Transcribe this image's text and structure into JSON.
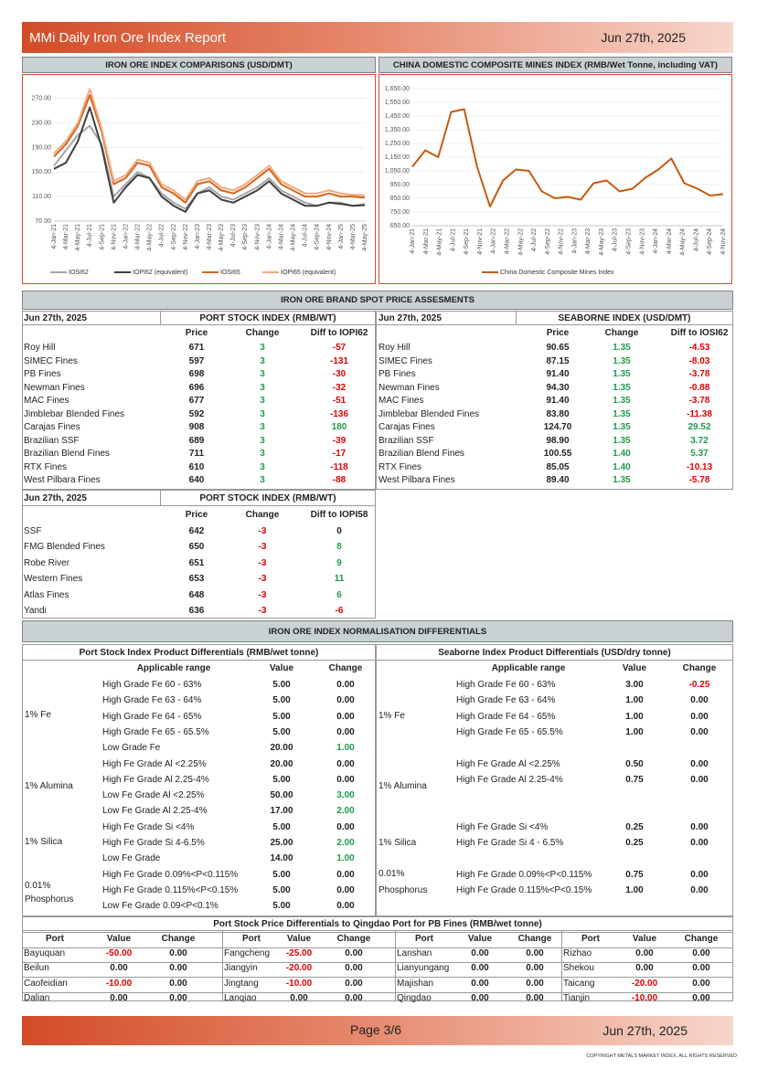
{
  "header": {
    "title": "MMi Daily Iron Ore Index Report",
    "date": "Jun 27th, 2025"
  },
  "footer": {
    "page": "Page 3/6",
    "date": "Jun 27th, 2025",
    "copyright": "COPYRIGHT METALS MARKET INDEX, ALL RIGHTS RESERVED"
  },
  "chart_left_title": "IRON ORE INDEX COMPARISONS (USD/DMT)",
  "chart_right_title": "CHINA DOMESTIC COMPOSITE MINES INDEX (RMB/Wet Tonne, including VAT)",
  "chart_data": [
    {
      "type": "line",
      "ylim": [
        70,
        290
      ],
      "y_ticks": [
        "270.00",
        "230.00",
        "190.00",
        "150.00",
        "110.00",
        "70.00"
      ],
      "x_ticks": [
        "4-Jan-21",
        "4-Mar-21",
        "4-May-21",
        "4-Jul-21",
        "4-Sep-21",
        "4-Nov-21",
        "4-Jan-22",
        "4-Mar-22",
        "4-May-22",
        "4-Jul-22",
        "4-Sep-22",
        "4-Nov-22",
        "4-Jan-23",
        "4-Mar-23",
        "4-May-23",
        "4-Jul-23",
        "4-Sep-23",
        "4-Nov-23",
        "4-Jan-24",
        "4-Mar-24",
        "4-May-24",
        "4-Jul-24",
        "4-Sep-24",
        "4-Nov-24",
        "4-Jan-25",
        "4-Mar-25",
        "4-May-25"
      ],
      "series": [
        {
          "name": "IOSI62",
          "color": "#a6a6a6",
          "values": [
            160,
            185,
            210,
            225,
            195,
            110,
            130,
            150,
            140,
            115,
            100,
            90,
            115,
            125,
            110,
            105,
            115,
            125,
            140,
            120,
            110,
            100,
            95,
            100,
            100,
            95,
            98
          ]
        },
        {
          "name": "IOPI62 (equivalent)",
          "color": "#404040",
          "values": [
            155,
            165,
            200,
            255,
            190,
            100,
            125,
            145,
            140,
            110,
            95,
            85,
            115,
            120,
            105,
            100,
            110,
            120,
            135,
            115,
            105,
            95,
            95,
            100,
            98,
            95,
            96
          ]
        },
        {
          "name": "IOSI65",
          "color": "#d4651e",
          "values": [
            175,
            195,
            225,
            275,
            215,
            130,
            140,
            165,
            160,
            125,
            115,
            100,
            130,
            135,
            120,
            115,
            125,
            140,
            155,
            130,
            120,
            110,
            110,
            115,
            110,
            110,
            108
          ]
        },
        {
          "name": "IOPI65 (equivalent)",
          "color": "#f2a97c",
          "values": [
            180,
            200,
            230,
            285,
            220,
            135,
            145,
            170,
            165,
            130,
            120,
            105,
            135,
            140,
            125,
            120,
            130,
            145,
            160,
            135,
            125,
            115,
            115,
            120,
            115,
            113,
            112
          ]
        }
      ]
    },
    {
      "type": "line",
      "ylim": [
        650,
        1650
      ],
      "y_ticks": [
        "1,650.00",
        "1,550.00",
        "1,450.00",
        "1,350.00",
        "1,250.00",
        "1,150.00",
        "1,050.00",
        "950.00",
        "850.00",
        "750.00",
        "650.00"
      ],
      "x_ticks": [
        "4-Jan-21",
        "4-Mar-21",
        "4-May-21",
        "4-Jul-21",
        "4-Sep-21",
        "4-Nov-21",
        "4-Jan-22",
        "4-Mar-22",
        "4-May-22",
        "4-Jul-22",
        "4-Sep-22",
        "4-Nov-22",
        "4-Jan-23",
        "4-Mar-23",
        "4-May-23",
        "4-Jul-23",
        "4-Sep-23",
        "4-Nov-23",
        "4-Jan-24",
        "4-Mar-24",
        "4-May-24",
        "4-Jul-24",
        "4-Sep-24",
        "4-Nov-24"
      ],
      "series": [
        {
          "name": "China Domestic Composite Mines Index",
          "color": "#c55a11",
          "values": [
            1080,
            1200,
            1150,
            1480,
            1500,
            1080,
            790,
            980,
            1060,
            1050,
            900,
            850,
            860,
            840,
            960,
            980,
            900,
            920,
            1000,
            1060,
            1140,
            960,
            920,
            870,
            880
          ]
        }
      ]
    }
  ],
  "spot_title": "IRON ORE BRAND SPOT PRICE ASSESMENTS",
  "port_stock": {
    "date": "Jun 27th, 2025",
    "title": "PORT STOCK INDEX (RMB/WT)",
    "cols": [
      "Price",
      "Change",
      "Diff to IOPI62"
    ],
    "rows": [
      [
        "Roy Hill",
        "671",
        "3",
        "-57"
      ],
      [
        "SIMEC Fines",
        "597",
        "3",
        "-131"
      ],
      [
        "PB Fines",
        "698",
        "3",
        "-30"
      ],
      [
        "Newman Fines",
        "696",
        "3",
        "-32"
      ],
      [
        "MAC Fines",
        "677",
        "3",
        "-51"
      ],
      [
        "Jimblebar Blended Fines",
        "592",
        "3",
        "-136"
      ],
      [
        "Carajas Fines",
        "908",
        "3",
        "180"
      ],
      [
        "Brazilian SSF",
        "689",
        "3",
        "-39"
      ],
      [
        "Brazilian Blend Fines",
        "711",
        "3",
        "-17"
      ],
      [
        "RTX Fines",
        "610",
        "3",
        "-118"
      ],
      [
        "West Pilbara Fines",
        "640",
        "3",
        "-88"
      ]
    ]
  },
  "seaborne": {
    "date": "Jun 27th, 2025",
    "title": "SEABORNE INDEX (USD/DMT)",
    "cols": [
      "Price",
      "Change",
      "Diff to IOSI62"
    ],
    "rows": [
      [
        "Roy Hill",
        "90.65",
        "1.35",
        "-4.53"
      ],
      [
        "SIMEC Fines",
        "87.15",
        "1.35",
        "-8.03"
      ],
      [
        "PB Fines",
        "91.40",
        "1.35",
        "-3.78"
      ],
      [
        "Newman Fines",
        "94.30",
        "1.35",
        "-0.88"
      ],
      [
        "MAC Fines",
        "91.40",
        "1.35",
        "-3.78"
      ],
      [
        "Jimblebar Blended Fines",
        "83.80",
        "1.35",
        "-11.38"
      ],
      [
        "Carajas Fines",
        "124.70",
        "1.35",
        "29.52"
      ],
      [
        "Brazilian SSF",
        "98.90",
        "1.35",
        "3.72"
      ],
      [
        "Brazilian Blend Fines",
        "100.55",
        "1.40",
        "5.37"
      ],
      [
        "RTX Fines",
        "85.05",
        "1.40",
        "-10.13"
      ],
      [
        "West Pilbara Fines",
        "89.40",
        "1.35",
        "-5.78"
      ]
    ]
  },
  "port_stock58": {
    "date": "Jun 27th, 2025",
    "title": "PORT STOCK INDEX (RMB/WT)",
    "cols": [
      "Price",
      "Change",
      "Diff to IOPI58"
    ],
    "rows": [
      [
        "SSF",
        "642",
        "-3",
        "0"
      ],
      [
        "FMG Blended Fines",
        "650",
        "-3",
        "8"
      ],
      [
        "Robe River",
        "651",
        "-3",
        "9"
      ],
      [
        "Western Fines",
        "653",
        "-3",
        "11"
      ],
      [
        "Atlas Fines",
        "648",
        "-3",
        "6"
      ],
      [
        "Yandi",
        "636",
        "-3",
        "-6"
      ]
    ]
  },
  "norm_title": "IRON ORE INDEX NORMALISATION DIFFERENTIALS",
  "norm_port": {
    "title": "Port Stock Index Product Differentials (RMB/wet tonne)",
    "cols": [
      "Applicable range",
      "Value",
      "Change"
    ],
    "groups": [
      "1% Fe",
      "1% Alumina",
      "1% Silica",
      "0.01% Phosphorus"
    ],
    "rows": [
      [
        "High Grade Fe 60 - 63%",
        "5.00",
        "0.00"
      ],
      [
        "High Grade Fe 63 - 64%",
        "5.00",
        "0.00"
      ],
      [
        "High Grade Fe 64 - 65%",
        "5.00",
        "0.00"
      ],
      [
        "High Grade Fe 65 - 65.5%",
        "5.00",
        "0.00"
      ],
      [
        "Low Grade Fe",
        "20.00",
        "1.00"
      ],
      [
        "High Fe Grade Al <2.25%",
        "20.00",
        "0.00"
      ],
      [
        "High Fe Grade Al 2.25-4%",
        "5.00",
        "0.00"
      ],
      [
        "Low Fe Grade Al <2.25%",
        "50.00",
        "3.00"
      ],
      [
        "Low Fe Grade Al 2.25-4%",
        "17.00",
        "2.00"
      ],
      [
        "High Fe Grade Si <4%",
        "5.00",
        "0.00"
      ],
      [
        "High Fe Grade Si 4-6.5%",
        "25.00",
        "2.00"
      ],
      [
        "Low Fe Grade",
        "14.00",
        "1.00"
      ],
      [
        "High Fe Grade 0.09%<P<0.115%",
        "5.00",
        "0.00"
      ],
      [
        "High Fe Grade 0.115%<P<0.15%",
        "5.00",
        "0.00"
      ],
      [
        "Low Fe Grade 0.09<P<0.1%",
        "5.00",
        "0.00"
      ]
    ]
  },
  "norm_sea": {
    "title": "Seaborne Index Product Differentials (USD/dry tonne)",
    "cols": [
      "Applicable range",
      "Value",
      "Change"
    ],
    "groups": [
      "1% Fe",
      "1% Alumina",
      "1% Silica",
      "0.01%",
      "Phosphorus"
    ],
    "rows": [
      [
        "High Grade Fe 60 - 63%",
        "3.00",
        "-0.25"
      ],
      [
        "High Grade Fe 63 - 64%",
        "1.00",
        "0.00"
      ],
      [
        "High Grade Fe 64 - 65%",
        "1.00",
        "0.00"
      ],
      [
        "High Grade Fe 65 - 65.5%",
        "1.00",
        "0.00"
      ],
      [
        "High Fe Grade Al <2.25%",
        "0.50",
        "0.00"
      ],
      [
        "High Fe Grade Al 2.25-4%",
        "0.75",
        "0.00"
      ],
      [
        "High Fe Grade Si <4%",
        "0.25",
        "0.00"
      ],
      [
        "High Fe Grade Si 4 - 6.5%",
        "0.25",
        "0.00"
      ],
      [
        "High Fe Grade 0.09%<P<0.115%",
        "0.75",
        "0.00"
      ],
      [
        "High Fe Grade 0.115%<P<0.15%",
        "1.00",
        "0.00"
      ]
    ]
  },
  "qingdao": {
    "title": "Port Stock Price Differentials to Qingdao Port for PB Fines (RMB/wet tonne)",
    "cols": [
      "Port",
      "Value",
      "Change"
    ],
    "rows": [
      [
        [
          "Bayuquan",
          "-50.00",
          "0.00"
        ],
        [
          "Fangcheng",
          "-25.00",
          "0.00"
        ],
        [
          "Lanshan",
          "0.00",
          "0.00"
        ],
        [
          "Rizhao",
          "0.00",
          "0.00"
        ]
      ],
      [
        [
          "Beilun",
          "0.00",
          "0.00"
        ],
        [
          "Jiangyin",
          "-20.00",
          "0.00"
        ],
        [
          "Lianyungang",
          "0.00",
          "0.00"
        ],
        [
          "Shekou",
          "0.00",
          "0.00"
        ]
      ],
      [
        [
          "Caofeidian",
          "-10.00",
          "0.00"
        ],
        [
          "Jingtang",
          "-10.00",
          "0.00"
        ],
        [
          "Majishan",
          "0.00",
          "0.00"
        ],
        [
          "Taicang",
          "-20.00",
          "0.00"
        ]
      ],
      [
        [
          "Dalian",
          "0.00",
          "0.00"
        ],
        [
          "Lanqiao",
          "0.00",
          "0.00"
        ],
        [
          "Qingdao",
          "0.00",
          "0.00"
        ],
        [
          "Tianjin",
          "-10.00",
          "0.00"
        ]
      ]
    ]
  }
}
